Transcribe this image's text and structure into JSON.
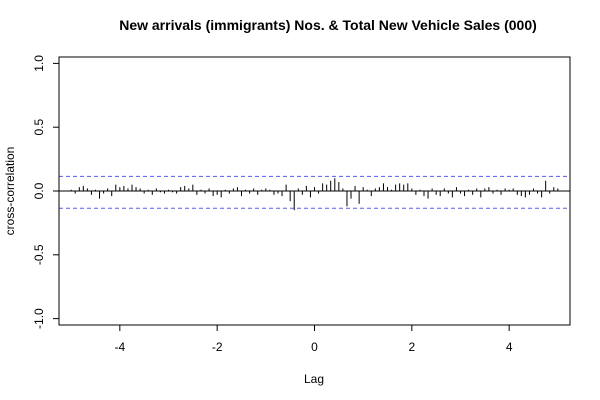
{
  "chart_data": {
    "type": "bar",
    "title": "New arrivals (immigrants) Nos. & Total New Vehicle Sales (000)",
    "xlabel": "Lag",
    "ylabel": "cross-correlation",
    "xlim": [
      -5.25,
      5.25
    ],
    "ylim": [
      -1.05,
      1.05
    ],
    "x_ticks": [
      -4,
      -2,
      0,
      2,
      4
    ],
    "x_tick_labels": [
      "-4",
      "-2",
      "0",
      "2",
      "4"
    ],
    "y_ticks": [
      -1.0,
      -0.5,
      0.0,
      0.5,
      1.0
    ],
    "y_tick_labels": [
      "-1.0",
      "-0.5",
      "0.0",
      "0.5",
      "1.0"
    ],
    "confidence_bounds": [
      0.115,
      -0.135
    ],
    "confidence_color": "#5a5af0",
    "bar_color": "#000000",
    "lags": [
      -5.0,
      -4.917,
      -4.833,
      -4.75,
      -4.667,
      -4.583,
      -4.5,
      -4.417,
      -4.333,
      -4.25,
      -4.167,
      -4.083,
      -4.0,
      -3.917,
      -3.833,
      -3.75,
      -3.667,
      -3.583,
      -3.5,
      -3.417,
      -3.333,
      -3.25,
      -3.167,
      -3.083,
      -3.0,
      -2.917,
      -2.833,
      -2.75,
      -2.667,
      -2.583,
      -2.5,
      -2.417,
      -2.333,
      -2.25,
      -2.167,
      -2.083,
      -2.0,
      -1.917,
      -1.833,
      -1.75,
      -1.667,
      -1.583,
      -1.5,
      -1.417,
      -1.333,
      -1.25,
      -1.167,
      -1.083,
      -1.0,
      -0.917,
      -0.833,
      -0.75,
      -0.667,
      -0.583,
      -0.5,
      -0.417,
      -0.333,
      -0.25,
      -0.167,
      -0.083,
      0.0,
      0.083,
      0.167,
      0.25,
      0.333,
      0.417,
      0.5,
      0.583,
      0.667,
      0.75,
      0.833,
      0.917,
      1.0,
      1.083,
      1.167,
      1.25,
      1.333,
      1.417,
      1.5,
      1.583,
      1.667,
      1.75,
      1.833,
      1.917,
      2.0,
      2.083,
      2.167,
      2.25,
      2.333,
      2.417,
      2.5,
      2.583,
      2.667,
      2.75,
      2.833,
      2.917,
      3.0,
      3.083,
      3.167,
      3.25,
      3.333,
      3.417,
      3.5,
      3.583,
      3.667,
      3.75,
      3.833,
      3.917,
      4.0,
      4.083,
      4.167,
      4.25,
      4.333,
      4.417,
      4.5,
      4.583,
      4.667,
      4.75,
      4.833,
      4.917,
      5.0
    ],
    "values": [
      0.01,
      -0.02,
      0.03,
      0.04,
      0.02,
      -0.03,
      0.01,
      -0.06,
      -0.02,
      0.02,
      -0.04,
      0.05,
      0.03,
      0.04,
      0.02,
      0.05,
      0.03,
      0.02,
      -0.02,
      0.01,
      -0.03,
      0.02,
      -0.01,
      -0.02,
      0.01,
      -0.01,
      -0.02,
      0.03,
      0.04,
      0.02,
      0.05,
      -0.03,
      0.01,
      -0.02,
      0.02,
      -0.04,
      -0.03,
      -0.05,
      0.01,
      -0.02,
      0.02,
      0.03,
      -0.04,
      0.01,
      -0.02,
      0.02,
      -0.03,
      0.01,
      0.02,
      0.01,
      -0.03,
      -0.02,
      -0.04,
      0.05,
      -0.08,
      -0.15,
      0.02,
      -0.03,
      0.04,
      -0.05,
      0.03,
      -0.02,
      0.06,
      0.05,
      0.08,
      0.1,
      0.07,
      0.02,
      -0.12,
      -0.06,
      0.04,
      -0.1,
      0.03,
      0.01,
      -0.04,
      0.02,
      0.03,
      0.06,
      0.03,
      0.01,
      0.05,
      0.06,
      0.05,
      0.06,
      0.02,
      -0.03,
      0.01,
      -0.04,
      -0.06,
      0.02,
      -0.03,
      -0.04,
      0.02,
      -0.02,
      -0.05,
      0.03,
      -0.02,
      -0.04,
      0.01,
      -0.03,
      0.02,
      -0.05,
      0.02,
      0.03,
      -0.02,
      0.01,
      -0.03,
      0.02,
      0.01,
      0.02,
      -0.03,
      -0.04,
      -0.05,
      -0.03,
      0.02,
      -0.02,
      -0.05,
      0.08,
      -0.02,
      0.03,
      0.02
    ]
  }
}
